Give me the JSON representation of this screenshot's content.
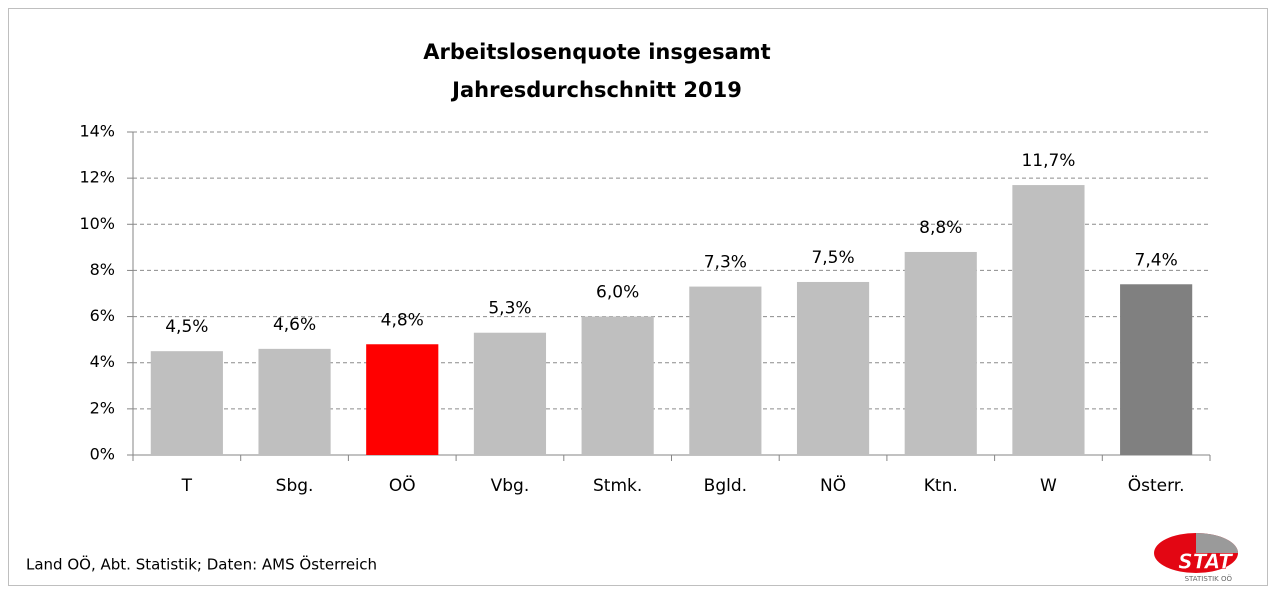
{
  "chart_data": {
    "type": "bar",
    "title": "Arbeitslosenquote insgesamt",
    "subtitle": "Jahresdurchschnitt 2019",
    "categories": [
      "T",
      "Sbg.",
      "OÖ",
      "Vbg.",
      "Stmk.",
      "Bgld.",
      "NÖ",
      "Ktn.",
      "W",
      "Österr."
    ],
    "values": [
      4.5,
      4.6,
      4.8,
      5.3,
      6.0,
      7.3,
      7.5,
      8.8,
      11.7,
      7.4
    ],
    "value_labels": [
      "4,5%",
      "4,6%",
      "4,8%",
      "5,3%",
      "6,0%",
      "7,3%",
      "7,5%",
      "8,8%",
      "11,7%",
      "7,4%"
    ],
    "colors": [
      "#bfbfbf",
      "#bfbfbf",
      "#ff0000",
      "#bfbfbf",
      "#bfbfbf",
      "#bfbfbf",
      "#bfbfbf",
      "#bfbfbf",
      "#bfbfbf",
      "#808080"
    ],
    "ylim": [
      0,
      14
    ],
    "yticks": [
      {
        "value": 0,
        "label": "0%"
      },
      {
        "value": 2,
        "label": "2%"
      },
      {
        "value": 4,
        "label": "4%"
      },
      {
        "value": 6,
        "label": "6%"
      },
      {
        "value": 8,
        "label": "8%"
      },
      {
        "value": 10,
        "label": "10%"
      },
      {
        "value": 12,
        "label": "12%"
      },
      {
        "value": 14,
        "label": "14%"
      }
    ],
    "grid": true,
    "source": "Land OÖ, Abt. Statistik; Daten: AMS Österreich",
    "logo": "STAT",
    "logo_subtext": "STATISTIK OÖ"
  }
}
